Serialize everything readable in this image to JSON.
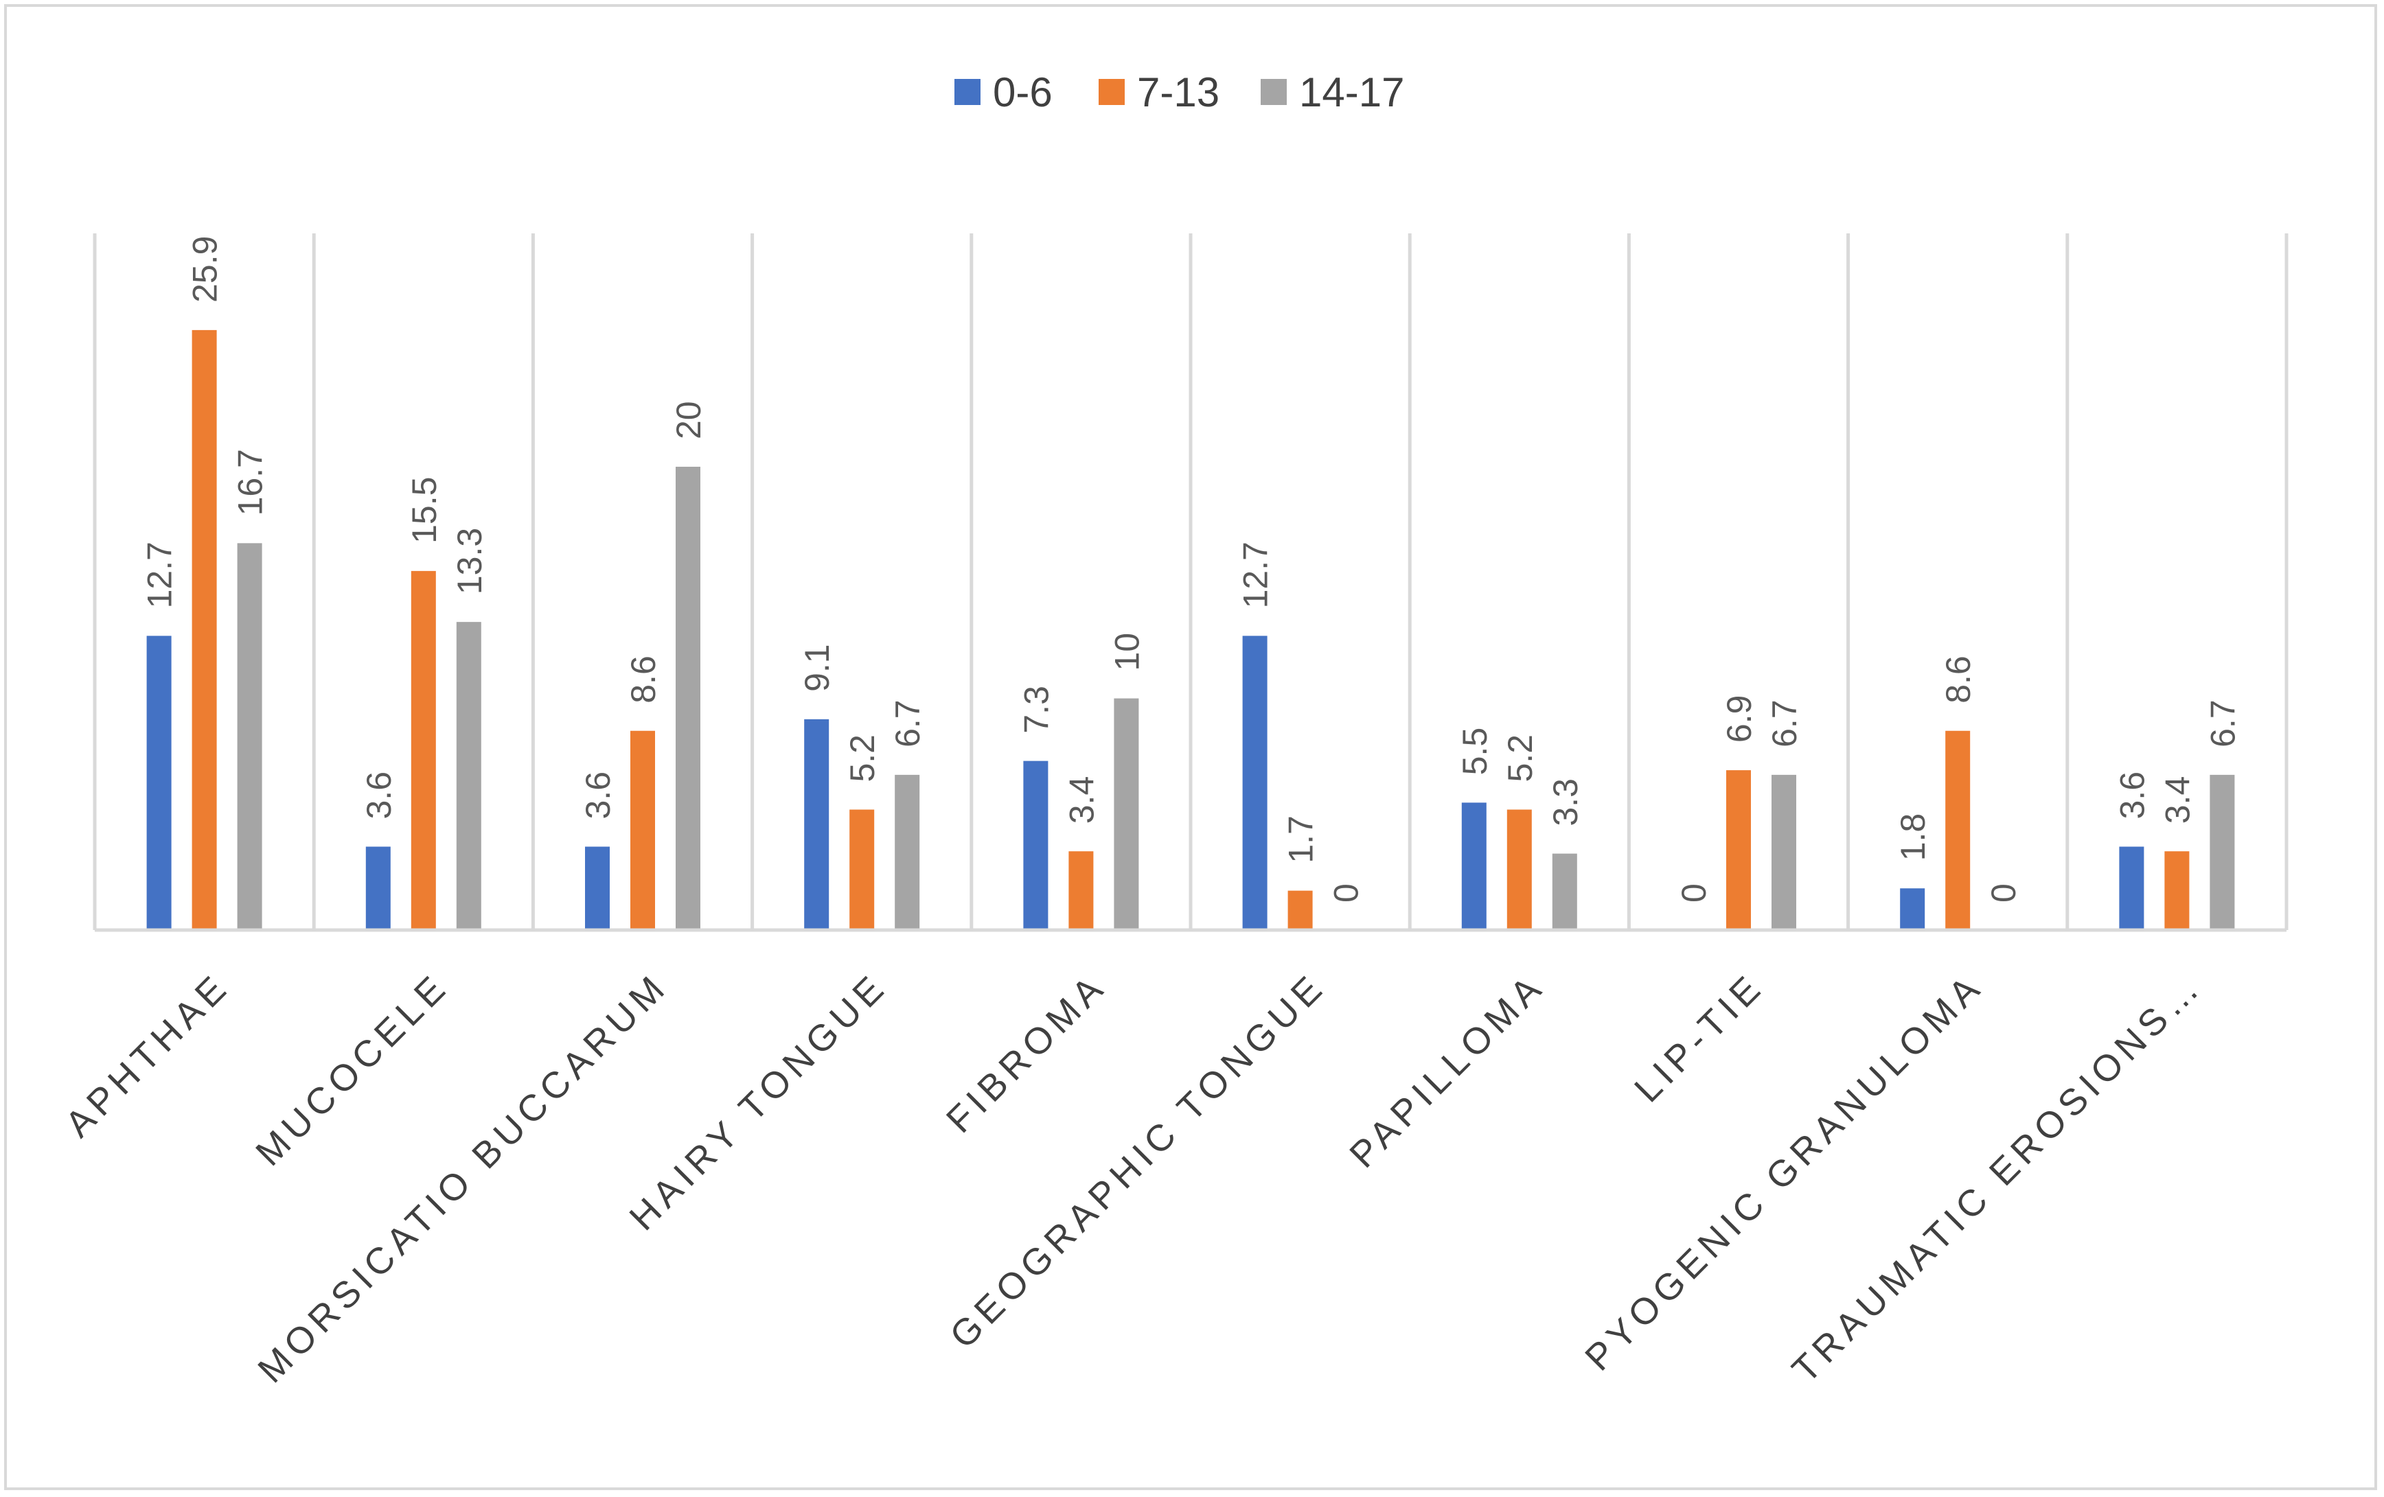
{
  "chart_data": {
    "type": "bar",
    "title": "",
    "xlabel": "",
    "ylabel": "",
    "ylim": [
      0,
      30
    ],
    "grid": false,
    "legend_position": "top",
    "categories": [
      "APHTHAE",
      "MUCOCELE",
      "MORSICATIO BUCCARUM",
      "HAIRY TONGUE",
      "FIBROMA",
      "GEOGRAPHIC TONGUE",
      "PAPILLOMA",
      "LIP-TIE",
      "PYOGENIC GRANULOMA",
      "TRAUMATIC EROSIONS…"
    ],
    "series": [
      {
        "name": "0-6",
        "color": "#4472c4",
        "values": [
          12.7,
          3.6,
          3.6,
          9.1,
          7.3,
          12.7,
          5.5,
          0,
          1.8,
          3.6
        ]
      },
      {
        "name": "7-13",
        "color": "#ed7d31",
        "values": [
          25.9,
          15.5,
          8.6,
          5.2,
          3.4,
          1.7,
          5.2,
          6.9,
          8.6,
          3.4
        ]
      },
      {
        "name": "14-17",
        "color": "#a5a5a5",
        "values": [
          16.7,
          13.3,
          20,
          6.7,
          10,
          0,
          3.3,
          6.7,
          0,
          6.7
        ]
      }
    ]
  }
}
